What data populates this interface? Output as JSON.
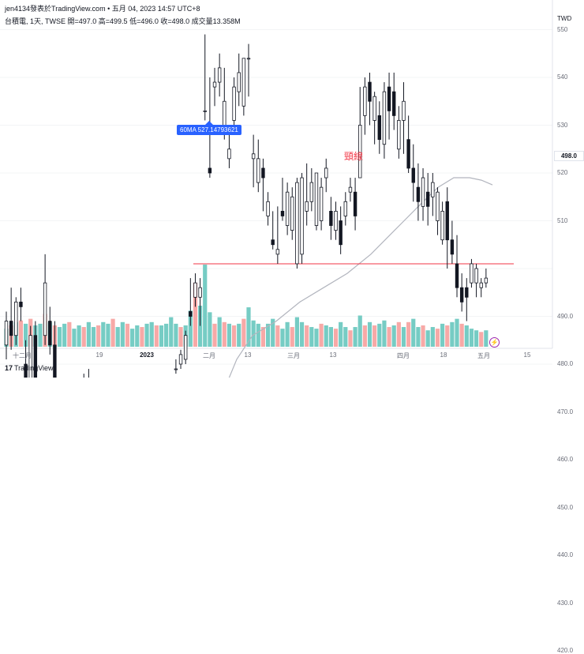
{
  "header": {
    "publisher_line": "jen4134發表於TradingView.com • 五月 04, 2023 14:57 UTC+8",
    "symbol_line": "台積電, 1天, TWSE  開=497.0  高=499.5  低=496.0  收=498.0  成交量13.358M"
  },
  "price_axis": {
    "unit": "TWD",
    "ticks": [
      "550",
      "540",
      "530",
      "520",
      "510",
      "500.0",
      "490.0",
      "480.0",
      "470.0",
      "460.0",
      "450.0",
      "440.0",
      "430.0",
      "420.0"
    ],
    "last_price": "498.0"
  },
  "time_axis": {
    "ticks": [
      "十二月",
      "19",
      "2023",
      "二月",
      "13",
      "三月",
      "13",
      "四月",
      "18",
      "五月",
      "15"
    ]
  },
  "annotations": {
    "ma_label": "60MA 527.14793621",
    "neckline_label": "頸線"
  },
  "footer": {
    "logo_text": "TradingView"
  },
  "colors": {
    "up": "#ffffff",
    "down": "#131722",
    "ma": "#b2b5be",
    "neckline": "#f23645",
    "vol_up": "#76ccc4",
    "vol_down": "#f7a9a7"
  },
  "chart_data": {
    "type": "candlestick",
    "ylim": [
      417,
      556
    ],
    "neckline": 501,
    "ohlc": [
      [
        484,
        491,
        481,
        489
      ],
      [
        489,
        496,
        483,
        486
      ],
      [
        486,
        494,
        484,
        493
      ],
      [
        493,
        496,
        489,
        492
      ],
      [
        480,
        485,
        474,
        476
      ],
      [
        476,
        488,
        474,
        486
      ],
      [
        486,
        489,
        472,
        474
      ],
      [
        474,
        477,
        469,
        472
      ],
      [
        486,
        503,
        484,
        497
      ],
      [
        489,
        492,
        482,
        484
      ],
      [
        484,
        489,
        474,
        477
      ],
      [
        471,
        474,
        465,
        468
      ],
      [
        468,
        477,
        465,
        474
      ],
      [
        474,
        477,
        469,
        471
      ],
      [
        469,
        474,
        464,
        467
      ],
      [
        467,
        472,
        465,
        471
      ],
      [
        471,
        478,
        469,
        474
      ],
      [
        474,
        479,
        472,
        476
      ],
      [
        469,
        474,
        465,
        467
      ],
      [
        467,
        469,
        463,
        465
      ],
      [
        459,
        464,
        455,
        462
      ],
      [
        462,
        467,
        459,
        465
      ],
      [
        459,
        461,
        455,
        459
      ],
      [
        455,
        459,
        449,
        457
      ],
      [
        453,
        456,
        443,
        447
      ],
      [
        447,
        452,
        443,
        449
      ],
      [
        449,
        454,
        445,
        452
      ],
      [
        452,
        458,
        450,
        456
      ],
      [
        456,
        461,
        453,
        459
      ],
      [
        449,
        455,
        442,
        445
      ],
      [
        445,
        450,
        441,
        443
      ],
      [
        447,
        453,
        443,
        451
      ],
      [
        451,
        456,
        445,
        453
      ],
      [
        453,
        459,
        451,
        457
      ],
      [
        468,
        468,
        467,
        468
      ],
      [
        479,
        481,
        478,
        479
      ],
      [
        480,
        483,
        479,
        482
      ],
      [
        481,
        487,
        480,
        486
      ],
      [
        491,
        498,
        488,
        490
      ],
      [
        494,
        499,
        492,
        497
      ],
      [
        494,
        498,
        488,
        496
      ],
      [
        533,
        549,
        531,
        533
      ],
      [
        521,
        540,
        519,
        520
      ],
      [
        538,
        542,
        534,
        539
      ],
      [
        539,
        545,
        536,
        542
      ],
      [
        529,
        542,
        527,
        535
      ],
      [
        523,
        530,
        521,
        525
      ],
      [
        531,
        540,
        528,
        538
      ],
      [
        537,
        545,
        534,
        541
      ],
      [
        534,
        543,
        532,
        544
      ],
      [
        544,
        547,
        536,
        544
      ],
      [
        523,
        528,
        517,
        524
      ],
      [
        518,
        527,
        516,
        523
      ],
      [
        521,
        523,
        512,
        519
      ],
      [
        511,
        516,
        509,
        514
      ],
      [
        506,
        512,
        504,
        505
      ],
      [
        503,
        513,
        501,
        504
      ],
      [
        512,
        519,
        510,
        511
      ],
      [
        509,
        518,
        507,
        516
      ],
      [
        508,
        517,
        506,
        515
      ],
      [
        501,
        519,
        500,
        518
      ],
      [
        503,
        520,
        501,
        519
      ],
      [
        512,
        522,
        509,
        514
      ],
      [
        514,
        521,
        512,
        518
      ],
      [
        509,
        520,
        508,
        520
      ],
      [
        510,
        519,
        508,
        517
      ],
      [
        519,
        523,
        516,
        521
      ],
      [
        512,
        515,
        506,
        509
      ],
      [
        508,
        514,
        506,
        512
      ],
      [
        510,
        513,
        503,
        505
      ],
      [
        511,
        516,
        509,
        514
      ],
      [
        516,
        519,
        514,
        517
      ],
      [
        516,
        519,
        508,
        511
      ],
      [
        519,
        538,
        520,
        530
      ],
      [
        532,
        540,
        528,
        538
      ],
      [
        539,
        541,
        530,
        535
      ],
      [
        531,
        537,
        526,
        536
      ],
      [
        532,
        535,
        524,
        527
      ],
      [
        526,
        539,
        523,
        537
      ],
      [
        538,
        541,
        527,
        533
      ],
      [
        537,
        541,
        529,
        532
      ],
      [
        525,
        534,
        523,
        531
      ],
      [
        531,
        539,
        524,
        535
      ],
      [
        527,
        532,
        520,
        521
      ],
      [
        521,
        526,
        514,
        518
      ],
      [
        517,
        522,
        510,
        514
      ],
      [
        513,
        521,
        510,
        519
      ],
      [
        516,
        520,
        509,
        513
      ],
      [
        515,
        520,
        511,
        518
      ],
      [
        510,
        517,
        507,
        516
      ],
      [
        506,
        514,
        505,
        512
      ],
      [
        514,
        517,
        500,
        506
      ],
      [
        506,
        510,
        501,
        503
      ],
      [
        501,
        507,
        494,
        496
      ],
      [
        496,
        499,
        491,
        493
      ],
      [
        496,
        498,
        489,
        494
      ],
      [
        497,
        502,
        496,
        501
      ],
      [
        497,
        501,
        494,
        500
      ],
      [
        496,
        498,
        494,
        497
      ],
      [
        497,
        500,
        496,
        498
      ]
    ],
    "ma60": [
      [
        0,
        434
      ],
      [
        10,
        433.5
      ],
      [
        30,
        433.5
      ],
      [
        60,
        434
      ],
      [
        100,
        434.5
      ],
      [
        140,
        436
      ],
      [
        180,
        439
      ],
      [
        210,
        444
      ],
      [
        240,
        452
      ],
      [
        260,
        462
      ],
      [
        280,
        473
      ],
      [
        300,
        481
      ],
      [
        320,
        486
      ],
      [
        350,
        489
      ],
      [
        380,
        493
      ],
      [
        410,
        496
      ],
      [
        440,
        499
      ],
      [
        470,
        503
      ],
      [
        500,
        508
      ],
      [
        530,
        513
      ],
      [
        555,
        517
      ],
      [
        575,
        519
      ],
      [
        595,
        519
      ],
      [
        610,
        518.5
      ],
      [
        624,
        517.5
      ]
    ],
    "volume": [
      [
        22,
        1
      ],
      [
        26,
        0
      ],
      [
        30,
        1
      ],
      [
        32,
        0
      ],
      [
        28,
        1
      ],
      [
        34,
        0
      ],
      [
        26,
        1
      ],
      [
        28,
        1
      ],
      [
        40,
        0
      ],
      [
        30,
        1
      ],
      [
        26,
        0
      ],
      [
        24,
        1
      ],
      [
        28,
        1
      ],
      [
        30,
        0
      ],
      [
        22,
        1
      ],
      [
        26,
        1
      ],
      [
        24,
        0
      ],
      [
        30,
        1
      ],
      [
        24,
        1
      ],
      [
        26,
        0
      ],
      [
        30,
        1
      ],
      [
        28,
        1
      ],
      [
        34,
        0
      ],
      [
        24,
        1
      ],
      [
        30,
        1
      ],
      [
        28,
        0
      ],
      [
        22,
        1
      ],
      [
        26,
        1
      ],
      [
        24,
        0
      ],
      [
        28,
        1
      ],
      [
        30,
        1
      ],
      [
        26,
        0
      ],
      [
        26,
        1
      ],
      [
        28,
        1
      ],
      [
        36,
        1
      ],
      [
        28,
        1
      ],
      [
        24,
        0
      ],
      [
        26,
        1
      ],
      [
        44,
        1
      ],
      [
        78,
        0
      ],
      [
        50,
        1
      ],
      [
        100,
        1
      ],
      [
        42,
        1
      ],
      [
        28,
        0
      ],
      [
        36,
        1
      ],
      [
        30,
        0
      ],
      [
        28,
        1
      ],
      [
        26,
        0
      ],
      [
        28,
        1
      ],
      [
        34,
        0
      ],
      [
        48,
        1
      ],
      [
        32,
        1
      ],
      [
        28,
        1
      ],
      [
        24,
        0
      ],
      [
        28,
        1
      ],
      [
        34,
        1
      ],
      [
        26,
        0
      ],
      [
        22,
        1
      ],
      [
        30,
        1
      ],
      [
        24,
        0
      ],
      [
        36,
        1
      ],
      [
        30,
        1
      ],
      [
        26,
        0
      ],
      [
        24,
        1
      ],
      [
        22,
        1
      ],
      [
        28,
        0
      ],
      [
        26,
        1
      ],
      [
        24,
        1
      ],
      [
        22,
        0
      ],
      [
        30,
        1
      ],
      [
        24,
        1
      ],
      [
        20,
        0
      ],
      [
        24,
        1
      ],
      [
        38,
        1
      ],
      [
        26,
        0
      ],
      [
        30,
        1
      ],
      [
        26,
        0
      ],
      [
        28,
        1
      ],
      [
        32,
        1
      ],
      [
        24,
        0
      ],
      [
        26,
        1
      ],
      [
        30,
        0
      ],
      [
        24,
        1
      ],
      [
        30,
        0
      ],
      [
        34,
        1
      ],
      [
        24,
        1
      ],
      [
        26,
        0
      ],
      [
        20,
        1
      ],
      [
        24,
        1
      ],
      [
        22,
        0
      ],
      [
        28,
        1
      ],
      [
        26,
        0
      ],
      [
        30,
        1
      ],
      [
        34,
        1
      ],
      [
        28,
        0
      ],
      [
        26,
        1
      ],
      [
        22,
        1
      ],
      [
        20,
        1
      ],
      [
        18,
        0
      ],
      [
        20,
        1
      ]
    ]
  }
}
